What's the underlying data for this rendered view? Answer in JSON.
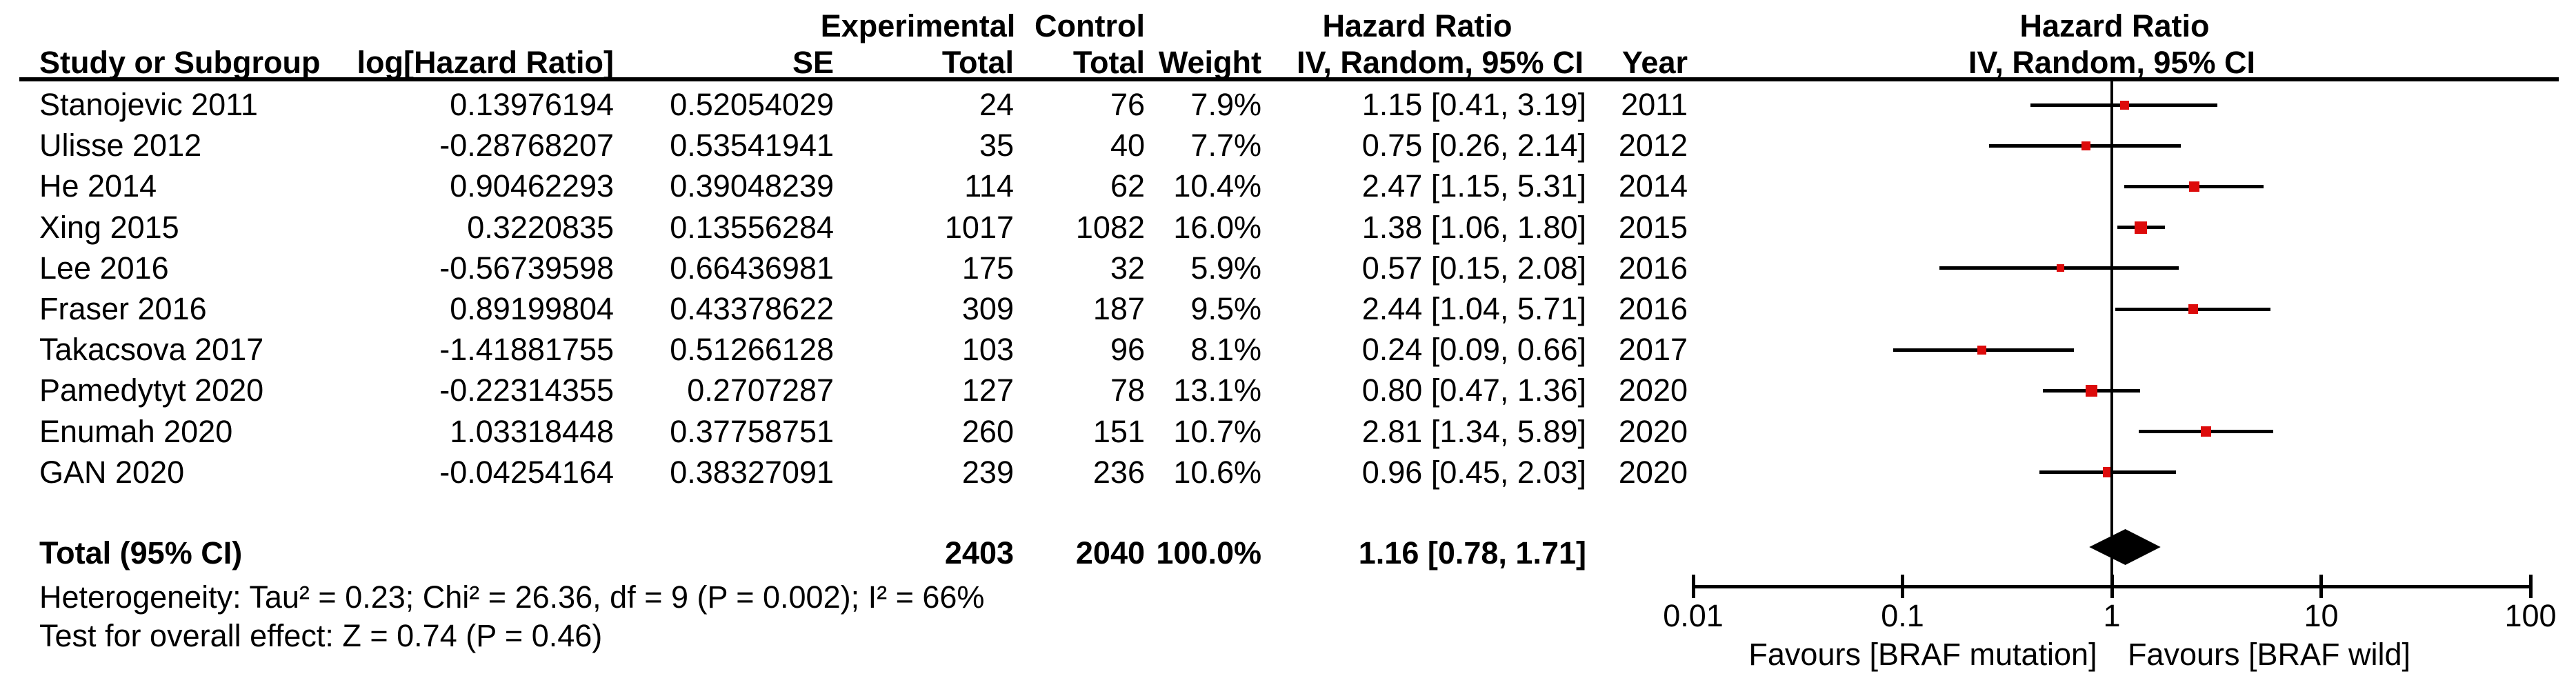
{
  "colors": {
    "marker_red": "#DD0B0B",
    "line_black": "#000000"
  },
  "table": {
    "header_row1": {
      "experimental": "Experimental",
      "control": "Control",
      "hazard_ratio": "Hazard Ratio"
    },
    "header_row2": {
      "study": "Study or Subgroup",
      "log_hr": "log[Hazard Ratio]",
      "se": "SE",
      "total_exp": "Total",
      "total_ctrl": "Total",
      "weight": "Weight",
      "iv_ci": "IV, Random, 95% CI",
      "year": "Year"
    }
  },
  "chart_data": {
    "type": "forest",
    "plot_title": "Hazard Ratio",
    "plot_subtitle": "IV, Random, 95% CI",
    "x_scale": "log",
    "x_ticks": [
      "0.01",
      "0.1",
      "1",
      "10",
      "100"
    ],
    "x_tick_values": [
      0.01,
      0.1,
      1,
      10,
      100
    ],
    "null_line": 1,
    "favours_left": "Favours [BRAF mutation]",
    "favours_right": "Favours [BRAF wild]",
    "studies": [
      {
        "name": "Stanojevic 2011",
        "log_hr": "0.13976194",
        "se": "0.52054029",
        "exp_total": "24",
        "ctrl_total": "76",
        "weight": "7.9%",
        "weight_pct": 7.9,
        "ci_text": "1.15 [0.41, 3.19]",
        "year": "2011",
        "hr": 1.15,
        "lo": 0.41,
        "hi": 3.19
      },
      {
        "name": "Ulisse 2012",
        "log_hr": "-0.28768207",
        "se": "0.53541941",
        "exp_total": "35",
        "ctrl_total": "40",
        "weight": "7.7%",
        "weight_pct": 7.7,
        "ci_text": "0.75 [0.26, 2.14]",
        "year": "2012",
        "hr": 0.75,
        "lo": 0.26,
        "hi": 2.14
      },
      {
        "name": "He 2014",
        "log_hr": "0.90462293",
        "se": "0.39048239",
        "exp_total": "114",
        "ctrl_total": "62",
        "weight": "10.4%",
        "weight_pct": 10.4,
        "ci_text": "2.47 [1.15, 5.31]",
        "year": "2014",
        "hr": 2.47,
        "lo": 1.15,
        "hi": 5.31
      },
      {
        "name": "Xing 2015",
        "log_hr": "0.3220835",
        "se": "0.13556284",
        "exp_total": "1017",
        "ctrl_total": "1082",
        "weight": "16.0%",
        "weight_pct": 16.0,
        "ci_text": "1.38 [1.06, 1.80]",
        "year": "2015",
        "hr": 1.38,
        "lo": 1.06,
        "hi": 1.8
      },
      {
        "name": "Lee 2016",
        "log_hr": "-0.56739598",
        "se": "0.66436981",
        "exp_total": "175",
        "ctrl_total": "32",
        "weight": "5.9%",
        "weight_pct": 5.9,
        "ci_text": "0.57 [0.15, 2.08]",
        "year": "2016",
        "hr": 0.57,
        "lo": 0.15,
        "hi": 2.08
      },
      {
        "name": "Fraser 2016",
        "log_hr": "0.89199804",
        "se": "0.43378622",
        "exp_total": "309",
        "ctrl_total": "187",
        "weight": "9.5%",
        "weight_pct": 9.5,
        "ci_text": "2.44 [1.04, 5.71]",
        "year": "2016",
        "hr": 2.44,
        "lo": 1.04,
        "hi": 5.71
      },
      {
        "name": "Takacsova 2017",
        "log_hr": "-1.41881755",
        "se": "0.51266128",
        "exp_total": "103",
        "ctrl_total": "96",
        "weight": "8.1%",
        "weight_pct": 8.1,
        "ci_text": "0.24 [0.09, 0.66]",
        "year": "2017",
        "hr": 0.24,
        "lo": 0.09,
        "hi": 0.66
      },
      {
        "name": "Pamedytyt 2020",
        "log_hr": "-0.22314355",
        "se": "0.2707287",
        "exp_total": "127",
        "ctrl_total": "78",
        "weight": "13.1%",
        "weight_pct": 13.1,
        "ci_text": "0.80 [0.47, 1.36]",
        "year": "2020",
        "hr": 0.8,
        "lo": 0.47,
        "hi": 1.36
      },
      {
        "name": "Enumah 2020",
        "log_hr": "1.03318448",
        "se": "0.37758751",
        "exp_total": "260",
        "ctrl_total": "151",
        "weight": "10.7%",
        "weight_pct": 10.7,
        "ci_text": "2.81 [1.34, 5.89]",
        "year": "2020",
        "hr": 2.81,
        "lo": 1.34,
        "hi": 5.89
      },
      {
        "name": "GAN 2020",
        "log_hr": "-0.04254164",
        "se": "0.38327091",
        "exp_total": "239",
        "ctrl_total": "236",
        "weight": "10.6%",
        "weight_pct": 10.6,
        "ci_text": "0.96 [0.45, 2.03]",
        "year": "2020",
        "hr": 0.96,
        "lo": 0.45,
        "hi": 2.03
      }
    ],
    "total": {
      "label": "Total (95% CI)",
      "exp_total": "2403",
      "ctrl_total": "2040",
      "weight": "100.0%",
      "ci_text": "1.16 [0.78, 1.71]",
      "hr": 1.16,
      "lo": 0.78,
      "hi": 1.71
    },
    "heterogeneity": "Heterogeneity: Tau² = 0.23; Chi² = 26.36, df = 9 (P = 0.002); I² = 66%",
    "overall_effect": "Test for overall effect: Z = 0.74 (P = 0.46)"
  }
}
